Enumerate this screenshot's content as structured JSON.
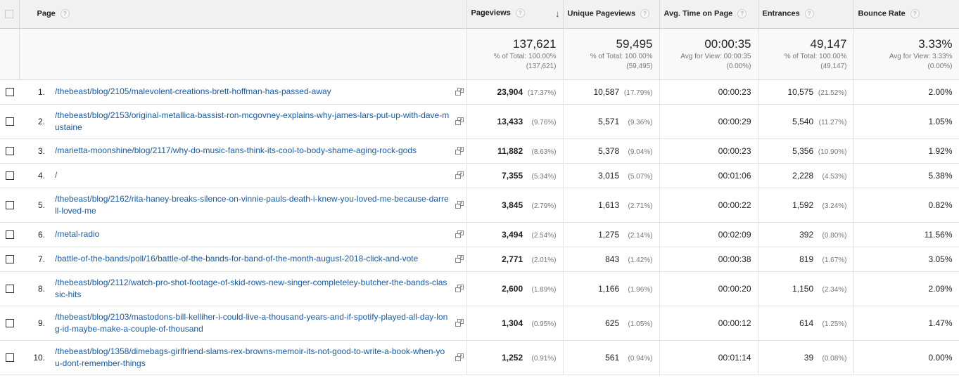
{
  "columns": {
    "page": "Page",
    "pageviews": "Pageviews",
    "unique": "Unique Pageviews",
    "avg_time": "Avg. Time on Page",
    "entrances": "Entrances",
    "bounce": "Bounce Rate",
    "help_glyph": "?",
    "sort_arrow": "↓"
  },
  "totals": {
    "pageviews": {
      "value": "137,621",
      "line1": "% of Total: 100.00%",
      "line2": "(137,621)"
    },
    "unique": {
      "value": "59,495",
      "line1": "% of Total: 100.00%",
      "line2": "(59,495)"
    },
    "avg_time": {
      "value": "00:00:35",
      "line1": "Avg for View: 00:00:35",
      "line2": "(0.00%)"
    },
    "entrances": {
      "value": "49,147",
      "line1": "% of Total: 100.00%",
      "line2": "(49,147)"
    },
    "bounce": {
      "value": "3.33%",
      "line1": "Avg for View: 3.33%",
      "line2": "(0.00%)"
    }
  },
  "rows": [
    {
      "idx": "1.",
      "page": "/thebeast/blog/2105/malevolent-creations-brett-hoffman-has-passed-away",
      "pv": "23,904",
      "pv_pct": "(17.37%)",
      "uv": "10,587",
      "uv_pct": "(17.79%)",
      "time": "00:00:23",
      "ent": "10,575",
      "ent_pct": "(21.52%)",
      "bounce": "2.00%"
    },
    {
      "idx": "2.",
      "page": "/thebeast/blog/2153/original-metallica-bassist-ron-mcgovney-explains-why-james-lars-put-up-with-dave-mustaine",
      "pv": "13,433",
      "pv_pct": "(9.76%)",
      "uv": "5,571",
      "uv_pct": "(9.36%)",
      "time": "00:00:29",
      "ent": "5,540",
      "ent_pct": "(11.27%)",
      "bounce": "1.05%"
    },
    {
      "idx": "3.",
      "page": "/marietta-moonshine/blog/2117/why-do-music-fans-think-its-cool-to-body-shame-aging-rock-gods",
      "pv": "11,882",
      "pv_pct": "(8.63%)",
      "uv": "5,378",
      "uv_pct": "(9.04%)",
      "time": "00:00:23",
      "ent": "5,356",
      "ent_pct": "(10.90%)",
      "bounce": "1.92%"
    },
    {
      "idx": "4.",
      "page": "/",
      "pv": "7,355",
      "pv_pct": "(5.34%)",
      "uv": "3,015",
      "uv_pct": "(5.07%)",
      "time": "00:01:06",
      "ent": "2,228",
      "ent_pct": "(4.53%)",
      "bounce": "5.38%"
    },
    {
      "idx": "5.",
      "page": "/thebeast/blog/2162/rita-haney-breaks-silence-on-vinnie-pauls-death-i-knew-you-loved-me-because-darrell-loved-me",
      "pv": "3,845",
      "pv_pct": "(2.79%)",
      "uv": "1,613",
      "uv_pct": "(2.71%)",
      "time": "00:00:22",
      "ent": "1,592",
      "ent_pct": "(3.24%)",
      "bounce": "0.82%"
    },
    {
      "idx": "6.",
      "page": "/metal-radio",
      "pv": "3,494",
      "pv_pct": "(2.54%)",
      "uv": "1,275",
      "uv_pct": "(2.14%)",
      "time": "00:02:09",
      "ent": "392",
      "ent_pct": "(0.80%)",
      "bounce": "11.56%"
    },
    {
      "idx": "7.",
      "page": "/battle-of-the-bands/poll/16/battle-of-the-bands-for-band-of-the-month-august-2018-click-and-vote",
      "pv": "2,771",
      "pv_pct": "(2.01%)",
      "uv": "843",
      "uv_pct": "(1.42%)",
      "time": "00:00:38",
      "ent": "819",
      "ent_pct": "(1.67%)",
      "bounce": "3.05%"
    },
    {
      "idx": "8.",
      "page": "/thebeast/blog/2112/watch-pro-shot-footage-of-skid-rows-new-singer-completeley-butcher-the-bands-classic-hits",
      "pv": "2,600",
      "pv_pct": "(1.89%)",
      "uv": "1,166",
      "uv_pct": "(1.96%)",
      "time": "00:00:20",
      "ent": "1,150",
      "ent_pct": "(2.34%)",
      "bounce": "2.09%"
    },
    {
      "idx": "9.",
      "page": "/thebeast/blog/2103/mastodons-bill-kelliher-i-could-live-a-thousand-years-and-if-spotify-played-all-day-long-id-maybe-make-a-couple-of-thousand",
      "pv": "1,304",
      "pv_pct": "(0.95%)",
      "uv": "625",
      "uv_pct": "(1.05%)",
      "time": "00:00:12",
      "ent": "614",
      "ent_pct": "(1.25%)",
      "bounce": "1.47%"
    },
    {
      "idx": "10.",
      "page": "/thebeast/blog/1358/dimebags-girlfriend-slams-rex-browns-memoir-its-not-good-to-write-a-book-when-you-dont-remember-things",
      "pv": "1,252",
      "pv_pct": "(0.91%)",
      "uv": "561",
      "uv_pct": "(0.94%)",
      "time": "00:01:14",
      "ent": "39",
      "ent_pct": "(0.08%)",
      "bounce": "0.00%"
    }
  ],
  "icons": {
    "row_action": "open-in-new-window-icon",
    "help": "help-icon"
  }
}
